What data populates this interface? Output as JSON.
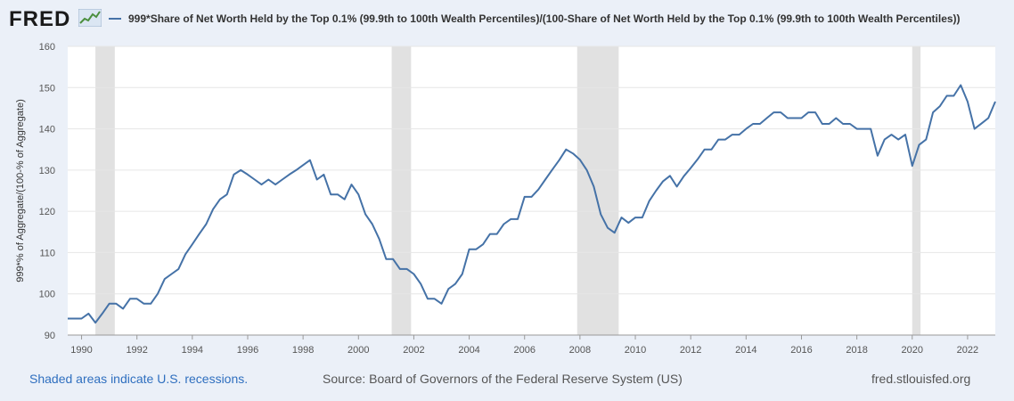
{
  "header": {
    "logo_text": "FRED",
    "legend_label": "999*Share of Net Worth Held by the Top 0.1% (99.9th to 100th Wealth Percentiles)/(100-Share of Net Worth Held by the Top 0.1% (99.9th to 100th Wealth Percentiles))"
  },
  "colors": {
    "series": "#4572a7",
    "recession": "#e1e1e1",
    "plot_bg": "#ffffff",
    "page_bg": "#ebf0f8",
    "grid": "#e6e6e6"
  },
  "footer": {
    "recession_note": "Shaded areas indicate U.S. recessions.",
    "source": "Source: Board of Governors of the Federal Reserve System (US)",
    "site": "fred.stlouisfed.org"
  },
  "chart_data": {
    "type": "line",
    "title": "999*Share of Net Worth Held by the Top 0.1% (99.9th to 100th Wealth Percentiles)/(100-Share of Net Worth Held by the Top 0.1% (99.9th to 100th Wealth Percentiles))",
    "xlabel": "",
    "ylabel": "999*% of Aggregate/(100-% of Aggregate)",
    "xlim": [
      1989.5,
      2023.0
    ],
    "ylim": [
      90,
      160
    ],
    "y_ticks": [
      90,
      100,
      110,
      120,
      130,
      140,
      150,
      160
    ],
    "x_ticks": [
      1990,
      1992,
      1994,
      1996,
      1998,
      2000,
      2002,
      2004,
      2006,
      2008,
      2010,
      2012,
      2014,
      2016,
      2018,
      2020,
      2022
    ],
    "grid": true,
    "legend_position": "top",
    "recessions": [
      {
        "start": 1990.5,
        "end": 1991.2
      },
      {
        "start": 2001.2,
        "end": 2001.9
      },
      {
        "start": 2007.9,
        "end": 2009.4
      },
      {
        "start": 2020.0,
        "end": 2020.3
      }
    ],
    "series": [
      {
        "name": "999*Share of Net Worth Held by the Top 0.1% (99.9th to 100th Wealth Percentiles)/(100-Share of Net Worth Held by the Top 0.1% (99.9th to 100th Wealth Percentiles))",
        "x": [
          1989.5,
          1989.75,
          1990.0,
          1990.25,
          1990.5,
          1990.75,
          1991.0,
          1991.25,
          1991.5,
          1991.75,
          1992.0,
          1992.25,
          1992.5,
          1992.75,
          1993.0,
          1993.25,
          1993.5,
          1993.75,
          1994.0,
          1994.25,
          1994.5,
          1994.75,
          1995.0,
          1995.25,
          1995.5,
          1995.75,
          1996.0,
          1996.25,
          1996.5,
          1996.75,
          1997.0,
          1997.25,
          1997.5,
          1997.75,
          1998.0,
          1998.25,
          1998.5,
          1998.75,
          1999.0,
          1999.25,
          1999.5,
          1999.75,
          2000.0,
          2000.25,
          2000.5,
          2000.75,
          2001.0,
          2001.25,
          2001.5,
          2001.75,
          2002.0,
          2002.25,
          2002.5,
          2002.75,
          2003.0,
          2003.25,
          2003.5,
          2003.75,
          2004.0,
          2004.25,
          2004.5,
          2004.75,
          2005.0,
          2005.25,
          2005.5,
          2005.75,
          2006.0,
          2006.25,
          2006.5,
          2006.75,
          2007.0,
          2007.25,
          2007.5,
          2007.75,
          2008.0,
          2008.25,
          2008.5,
          2008.75,
          2009.0,
          2009.25,
          2009.5,
          2009.75,
          2010.0,
          2010.25,
          2010.5,
          2010.75,
          2011.0,
          2011.25,
          2011.5,
          2011.75,
          2012.0,
          2012.25,
          2012.5,
          2012.75,
          2013.0,
          2013.25,
          2013.5,
          2013.75,
          2014.0,
          2014.25,
          2014.5,
          2014.75,
          2015.0,
          2015.25,
          2015.5,
          2015.75,
          2016.0,
          2016.25,
          2016.5,
          2016.75,
          2017.0,
          2017.25,
          2017.5,
          2017.75,
          2018.0,
          2018.25,
          2018.5,
          2018.75,
          2019.0,
          2019.25,
          2019.5,
          2019.75,
          2020.0,
          2020.25,
          2020.5,
          2020.75,
          2021.0,
          2021.25,
          2021.5,
          2021.75,
          2022.0,
          2022.25,
          2022.5,
          2022.75,
          2023.0
        ],
        "values": [
          94,
          94,
          94,
          95.2,
          93,
          95.2,
          97.6,
          97.6,
          96.4,
          98.8,
          98.8,
          97.6,
          97.6,
          100,
          103.6,
          104.8,
          106,
          109.6,
          112,
          114.5,
          116.9,
          120.5,
          122.9,
          124.1,
          128.9,
          130,
          128.9,
          127.7,
          126.5,
          127.7,
          126.5,
          127.7,
          128.9,
          130,
          131.2,
          132.4,
          127.7,
          128.9,
          124.1,
          124.1,
          122.9,
          126.5,
          124.1,
          119.3,
          116.9,
          113.3,
          108.4,
          108.4,
          106,
          106,
          104.8,
          102.4,
          98.8,
          98.8,
          97.6,
          101.2,
          102.4,
          104.8,
          110.8,
          110.8,
          112,
          114.5,
          114.5,
          116.9,
          118.1,
          118.1,
          123.5,
          123.5,
          125.3,
          127.7,
          130.1,
          132.4,
          135,
          134,
          132.5,
          130,
          126,
          119.3,
          116,
          114.8,
          118.5,
          117.2,
          118.5,
          118.5,
          122.5,
          125,
          127.3,
          128.6,
          126,
          128.5,
          130.5,
          132.6,
          135,
          135,
          137.4,
          137.4,
          138.6,
          138.6,
          140,
          141.2,
          141.2,
          142.6,
          144,
          144,
          142.6,
          142.6,
          142.6,
          144,
          144,
          141.2,
          141.2,
          142.6,
          141.2,
          141.2,
          140,
          140,
          140,
          133.5,
          137.4,
          138.6,
          137.4,
          138.6,
          131,
          136.1,
          137.4,
          144,
          145.5,
          148,
          148,
          150.6,
          146.6,
          140,
          141.3,
          142.6,
          146.6
        ]
      }
    ]
  }
}
